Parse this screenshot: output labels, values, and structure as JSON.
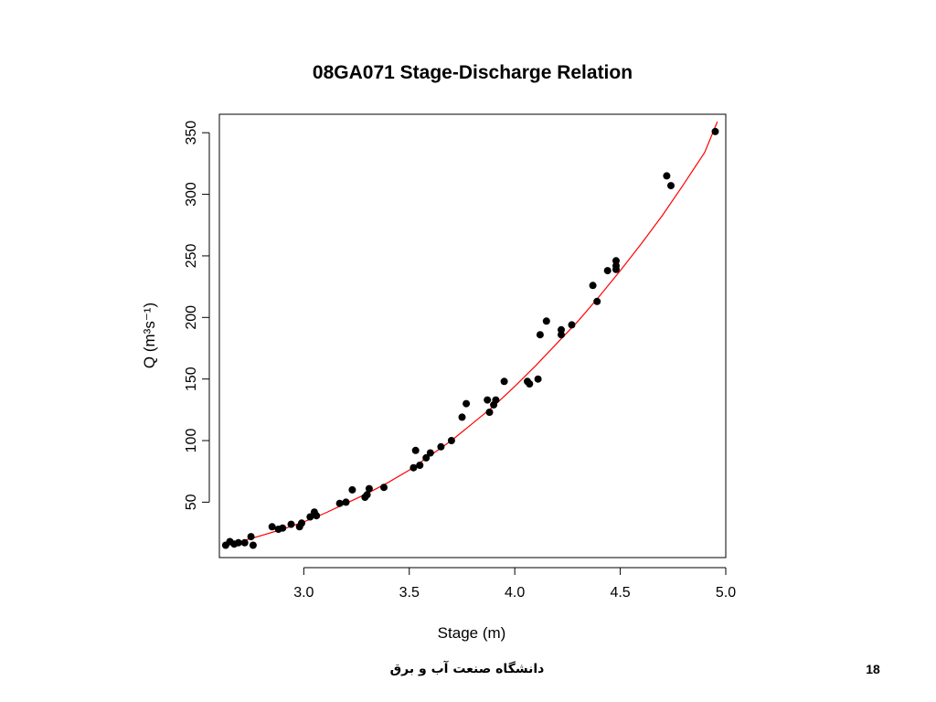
{
  "chart_data": {
    "type": "scatter",
    "title": "08GA071 Stage-Discharge Relation",
    "xlabel": "Stage (m)",
    "ylabel": "Q (m³s⁻¹)",
    "xlim": [
      2.6,
      5.0
    ],
    "ylim": [
      5,
      365
    ],
    "x_ticks": [
      "3.0",
      "3.5",
      "4.0",
      "4.5",
      "5.0"
    ],
    "y_ticks": [
      "50",
      "100",
      "150",
      "200",
      "250",
      "300",
      "350"
    ],
    "grid": false,
    "series": [
      {
        "kind": "points",
        "color": "#000000",
        "x": [
          2.63,
          2.65,
          2.67,
          2.69,
          2.72,
          2.75,
          2.76,
          2.85,
          2.88,
          2.9,
          2.94,
          2.98,
          2.99,
          3.03,
          3.05,
          3.06,
          3.17,
          3.2,
          3.23,
          3.29,
          3.3,
          3.31,
          3.38,
          3.52,
          3.53,
          3.55,
          3.58,
          3.6,
          3.65,
          3.7,
          3.75,
          3.77,
          3.87,
          3.88,
          3.9,
          3.91,
          3.95,
          4.06,
          4.07,
          4.11,
          4.12,
          4.15,
          4.22,
          4.22,
          4.27,
          4.37,
          4.39,
          4.44,
          4.48,
          4.48,
          4.48,
          4.72,
          4.74,
          4.95
        ],
        "y": [
          15,
          18,
          16,
          17,
          17,
          22,
          15,
          30,
          28,
          29,
          32,
          30,
          33,
          38,
          42,
          39,
          49,
          50,
          60,
          54,
          56,
          61,
          62,
          78,
          92,
          80,
          86,
          90,
          95,
          100,
          119,
          130,
          133,
          123,
          129,
          133,
          148,
          148,
          146,
          150,
          186,
          197,
          190,
          186,
          194,
          226,
          213,
          238,
          246,
          242,
          239,
          315,
          307,
          351
        ]
      },
      {
        "kind": "fit-curve",
        "color": "#ff0000",
        "x": [
          2.62,
          2.7,
          2.8,
          2.9,
          3.0,
          3.1,
          3.2,
          3.3,
          3.4,
          3.5,
          3.6,
          3.7,
          3.8,
          3.9,
          4.0,
          4.1,
          4.2,
          4.3,
          4.4,
          4.5,
          4.6,
          4.7,
          4.8,
          4.9,
          4.96
        ],
        "y": [
          14,
          18,
          23,
          28,
          34,
          41,
          49,
          57,
          66,
          76,
          88,
          100,
          114,
          128,
          144,
          161,
          179,
          197,
          217,
          238,
          260,
          283,
          308,
          334,
          359
        ]
      }
    ]
  },
  "footer": {
    "university": "دانشگاه صنعت آب و برق",
    "page_number": "18"
  }
}
